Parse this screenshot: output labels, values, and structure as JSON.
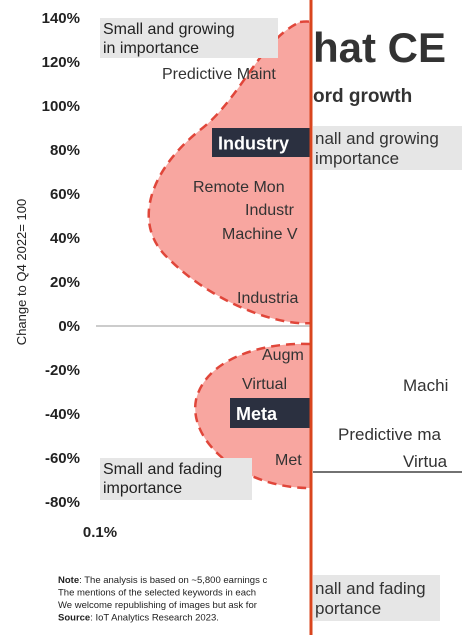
{
  "chart_data": {
    "type": "scatter",
    "ylabel": "Change to Q4 2022= 100",
    "ylim": [
      -80,
      140
    ],
    "yticks": [
      {
        "value": 140,
        "label": "140%"
      },
      {
        "value": 120,
        "label": "120%"
      },
      {
        "value": 100,
        "label": "100%"
      },
      {
        "value": 80,
        "label": "80%"
      },
      {
        "value": 60,
        "label": "60%"
      },
      {
        "value": 40,
        "label": "40%"
      },
      {
        "value": 20,
        "label": "20%"
      },
      {
        "value": 0,
        "label": "0%"
      },
      {
        "value": -20,
        "label": "-20%"
      },
      {
        "value": -40,
        "label": "-40%"
      },
      {
        "value": -60,
        "label": "-60%"
      },
      {
        "value": -80,
        "label": "-80%"
      }
    ],
    "xticks": [
      {
        "value": 0.1,
        "label": "0.1%"
      }
    ],
    "quadrant_labels": [
      [
        "Small and growing",
        "in importance"
      ],
      [
        "Small and fading",
        "importance"
      ]
    ],
    "cluster_labels": [
      "Industry",
      "Meta"
    ],
    "keyword_labels": [
      "Predictive Maint",
      "Remote Mon",
      "Industr",
      "Machine V",
      "Industria",
      "Augm",
      "Virtual",
      "Met"
    ]
  },
  "footnote": [
    {
      "bold": "Note",
      "text": ": The analysis is based on ~5,800 earnings c"
    },
    {
      "text": "The mentions of the selected keywords in each"
    },
    {
      "text": "We welcome republishing of images but ask for"
    },
    {
      "bold": "Source",
      "text": ": IoT Analytics Research 2023."
    }
  ],
  "overlay": {
    "title": "hat CE",
    "subtitle": "ord growth",
    "top_box": [
      "nall and growing",
      "importance"
    ],
    "labels": [
      "Machi",
      "Predictive ma",
      "Virtua"
    ],
    "bottom_box": [
      "nall and fading",
      "portance"
    ]
  }
}
